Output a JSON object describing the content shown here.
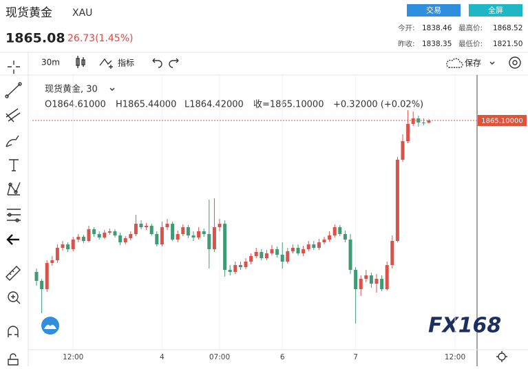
{
  "header": {
    "title": "现货黄金",
    "symbol": "XAU",
    "price": "1865.08",
    "change": "26.73(1.45%)",
    "buttons": [
      "交易",
      "全屏"
    ],
    "stats": [
      [
        "今开:",
        "1838.46",
        "最高价:",
        "1868.52"
      ],
      [
        "昨收:",
        "1838.35",
        "最低价:",
        "1821.50"
      ]
    ]
  },
  "toolbar": {
    "interval": "30m",
    "indicators": "指标",
    "save": "保存"
  },
  "legend": {
    "name": "现货黄金, 30",
    "open": "O1864.61000",
    "high": "H1865.44000",
    "low": "L1864.42000",
    "close": "收=1865.10000",
    "change": "+0.32000 (+0.02%)"
  },
  "logo": "FX168",
  "chart_data": {
    "type": "candlestick",
    "up_color": "#d9534a",
    "down_color": "#3f9b74",
    "ylim": [
      1815.6,
      1874.55
    ],
    "price_marker": {
      "value": 1865.1,
      "label": "1865.10000"
    },
    "categories": [
      null,
      null,
      null,
      null,
      null,
      null,
      null,
      "12:00",
      null,
      null,
      null,
      null,
      null,
      null,
      null,
      null,
      null,
      null,
      null,
      null,
      null,
      null,
      null,
      null,
      "4",
      null,
      null,
      null,
      null,
      null,
      null,
      null,
      null,
      null,
      null,
      "07:00",
      null,
      null,
      null,
      null,
      null,
      null,
      null,
      null,
      null,
      null,
      null,
      "6",
      null,
      null,
      null,
      null,
      null,
      null,
      null,
      null,
      null,
      null,
      null,
      null,
      null,
      "7",
      null,
      null,
      null,
      null,
      null,
      null,
      null,
      null,
      null,
      null,
      null,
      null,
      null,
      null,
      null,
      null,
      null,
      null,
      "12:00",
      null,
      null,
      null
    ],
    "open": [
      1832.1,
      1830.15,
      1828.35,
      1834.05,
      1834.65,
      1837.35,
      1838.1,
      1837.05,
      1839.15,
      1839.75,
      1838.85,
      1841.4,
      1840.35,
      1839.6,
      1840.65,
      1840.95,
      1840.05,
      1838.55,
      1839.45,
      1840.35,
      1842.6,
      1841.85,
      1842.15,
      1840.35,
      1838.1,
      1841.85,
      1842.6,
      1839.15,
      1840.35,
      1841.85,
      1840.05,
      1839.6,
      1840.95,
      1840.35,
      1837.05,
      1841.85,
      1842.6,
      1832.55,
      1832.1,
      1833.6,
      1833.15,
      1834.35,
      1835.55,
      1836.45,
      1835.1,
      1836.15,
      1837.05,
      1835.85,
      1834.35,
      1836.6,
      1837.35,
      1836.15,
      1837.05,
      1838.1,
      1837.35,
      1838.55,
      1839.15,
      1840.05,
      1841.85,
      1840.35,
      1839.15,
      1832.55,
      1828.35,
      1830.6,
      1831.35,
      1829.55,
      1830.6,
      1828.35,
      1833.6,
      1838.85,
      1856.55,
      1860.6,
      1864.35,
      1865.55,
      1864.65,
      1864.61,
      null,
      null,
      null,
      null,
      null,
      null,
      null,
      null
    ],
    "high": [
      1832.85,
      1830.6,
      1834.65,
      1835.55,
      1838.1,
      1838.85,
      1838.55,
      1839.75,
      1840.35,
      1840.2,
      1842.15,
      1841.85,
      1840.95,
      1841.25,
      1841.55,
      1841.4,
      1840.65,
      1839.9,
      1840.95,
      1844.55,
      1843.35,
      1842.75,
      1842.6,
      1840.95,
      1843.05,
      1843.65,
      1843.05,
      1841.1,
      1842.45,
      1842.3,
      1840.95,
      1841.85,
      1841.55,
      1847.85,
      1848.15,
      1843.65,
      1843.35,
      1833.6,
      1834.35,
      1834.35,
      1835.1,
      1836.15,
      1837.35,
      1837.05,
      1836.9,
      1837.95,
      1837.65,
      1838.55,
      1837.35,
      1838.1,
      1838.1,
      1837.8,
      1838.85,
      1838.85,
      1839.3,
      1839.75,
      1840.95,
      1842.45,
      1842.3,
      1841.1,
      1840.35,
      1833.15,
      1831.35,
      1832.55,
      1831.95,
      1831.65,
      1831.35,
      1834.35,
      1840.05,
      1857.15,
      1862.1,
      1867.35,
      1867.05,
      1866.15,
      1865.55,
      1865.44,
      null,
      null,
      null,
      null,
      null,
      null,
      null,
      null
    ],
    "low": [
      1829.1,
      1823.1,
      1827.75,
      1833.45,
      1834.05,
      1836.75,
      1836.45,
      1836.6,
      1838.55,
      1838.4,
      1838.55,
      1839.75,
      1839.15,
      1839.3,
      1840.2,
      1839.6,
      1837.95,
      1838.1,
      1839.0,
      1839.9,
      1841.4,
      1841.25,
      1840.05,
      1837.65,
      1837.65,
      1841.25,
      1838.85,
      1838.55,
      1839.9,
      1839.45,
      1838.85,
      1839.15,
      1839.75,
      1832.85,
      1836.45,
      1840.95,
      1831.05,
      1831.35,
      1831.65,
      1832.55,
      1832.7,
      1833.75,
      1835.1,
      1834.65,
      1834.65,
      1835.7,
      1835.25,
      1832.85,
      1833.9,
      1836.15,
      1835.7,
      1835.55,
      1836.6,
      1836.9,
      1836.9,
      1838.1,
      1838.7,
      1839.6,
      1839.9,
      1838.55,
      1831.65,
      1820.85,
      1826.85,
      1829.85,
      1828.65,
      1827.6,
      1827.9,
      1828.05,
      1832.85,
      1838.55,
      1856.1,
      1860.15,
      1863.9,
      1863.75,
      1864.05,
      1864.42,
      null,
      null,
      null,
      null,
      null,
      null,
      null,
      null
    ],
    "close": [
      1830.15,
      1828.35,
      1834.05,
      1834.65,
      1837.35,
      1838.1,
      1837.05,
      1839.15,
      1839.75,
      1838.85,
      1841.4,
      1840.35,
      1839.6,
      1840.65,
      1840.95,
      1840.05,
      1838.55,
      1839.45,
      1840.35,
      1842.6,
      1841.85,
      1842.15,
      1840.35,
      1838.1,
      1841.85,
      1842.6,
      1839.15,
      1840.35,
      1841.85,
      1840.05,
      1839.6,
      1840.95,
      1840.35,
      1837.05,
      1841.85,
      1842.6,
      1832.55,
      1832.1,
      1833.6,
      1833.15,
      1834.35,
      1835.55,
      1836.45,
      1835.1,
      1836.15,
      1837.05,
      1835.85,
      1834.35,
      1836.6,
      1837.35,
      1836.15,
      1837.05,
      1838.1,
      1837.35,
      1838.55,
      1839.15,
      1840.05,
      1841.85,
      1840.35,
      1839.15,
      1832.55,
      1828.35,
      1830.6,
      1831.35,
      1829.55,
      1830.6,
      1828.35,
      1833.6,
      1838.85,
      1856.55,
      1860.6,
      1864.35,
      1865.55,
      1864.65,
      1864.61,
      1865.1,
      null,
      null,
      null,
      null,
      null,
      null,
      null,
      null
    ]
  }
}
